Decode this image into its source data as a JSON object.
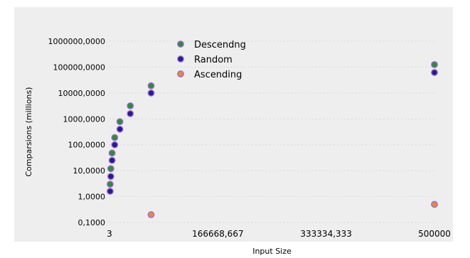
{
  "chart_data": {
    "type": "scatter",
    "title": "",
    "xlabel": "Input Size",
    "ylabel": "Comparsions (millions)",
    "xlim": [
      3,
      500000
    ],
    "ylim": [
      0.1,
      1000000
    ],
    "y_scale": "log",
    "x_ticks": [
      "3",
      "166668,667",
      "333334,333",
      "500000"
    ],
    "y_ticks": [
      "0,1000",
      "1,0000",
      "10,0000",
      "100,0000",
      "1000,0000",
      "10000,0000",
      "100000,0000",
      "1000000,0000"
    ],
    "grid": true,
    "legend_position": "top-left",
    "background": "#eeeeee",
    "series": [
      {
        "name": "Descendng",
        "color": "#2e8b3a",
        "points": [
          {
            "x": 1000,
            "y": 3
          },
          {
            "x": 2000,
            "y": 12
          },
          {
            "x": 4000,
            "y": 48
          },
          {
            "x": 8000,
            "y": 190
          },
          {
            "x": 16000,
            "y": 780
          },
          {
            "x": 32000,
            "y": 3200
          },
          {
            "x": 64000,
            "y": 19000
          },
          {
            "x": 500000,
            "y": 125000
          }
        ]
      },
      {
        "name": "Random",
        "color": "#2a1a8c",
        "points": [
          {
            "x": 1000,
            "y": 1.6
          },
          {
            "x": 2000,
            "y": 6
          },
          {
            "x": 4000,
            "y": 25
          },
          {
            "x": 8000,
            "y": 100
          },
          {
            "x": 16000,
            "y": 400
          },
          {
            "x": 32000,
            "y": 1600
          },
          {
            "x": 64000,
            "y": 10000
          },
          {
            "x": 500000,
            "y": 62000
          }
        ]
      },
      {
        "name": "Ascending",
        "color": "#e8873a",
        "points": [
          {
            "x": 64000,
            "y": 0.2
          },
          {
            "x": 500000,
            "y": 0.5
          }
        ]
      }
    ]
  }
}
